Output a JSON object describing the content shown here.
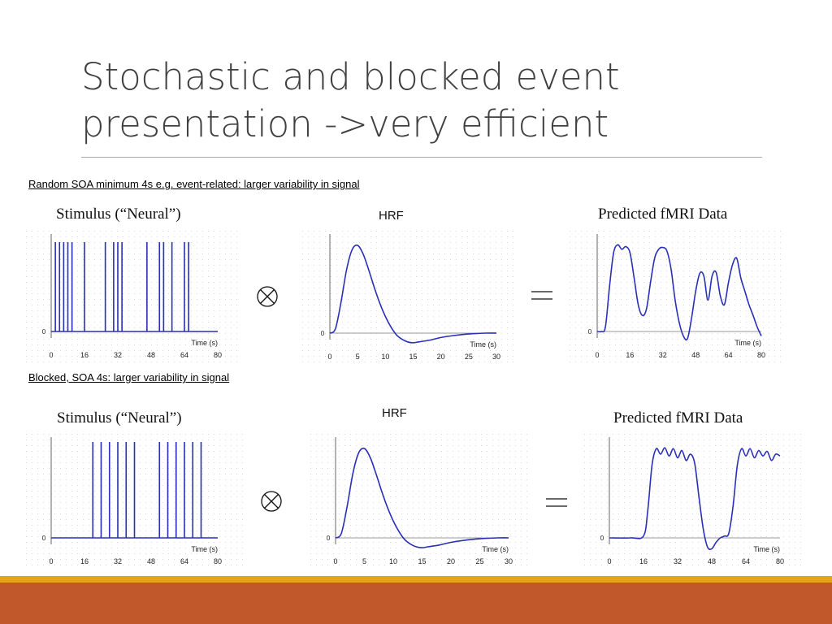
{
  "slide": {
    "title_line1": "Stochastic and blocked event",
    "title_line2": "presentation  ->very efficient"
  },
  "sections": {
    "random": {
      "label": "Random SOA minimum 4s e.g. event-related: larger variability in signal",
      "stimulus_title": "Stimulus (“Neural”)",
      "hrf_title": "HRF",
      "predicted_title": "Predicted fMRI Data"
    },
    "blocked": {
      "label": "Blocked, SOA 4s: larger variability in signal",
      "stimulus_title": "Stimulus (“Neural”)",
      "hrf_title": "HRF",
      "predicted_title": "Predicted fMRI Data"
    }
  },
  "operators": {
    "convolve": "⊗",
    "equals": "="
  },
  "axis": {
    "zero": "0",
    "time_label": "Time (s)",
    "ticks_80": [
      "0",
      "16",
      "32",
      "48",
      "64",
      "80"
    ],
    "ticks_30": [
      "0",
      "5",
      "10",
      "15",
      "20",
      "25",
      "30"
    ]
  },
  "chart_data": [
    {
      "type": "line",
      "panel": "random-stimulus",
      "xlim": [
        0,
        80
      ],
      "xlabel": "Time (s)",
      "events_x": [
        2,
        4,
        6,
        8,
        10,
        16,
        26,
        30,
        32,
        34,
        46,
        52,
        54,
        58,
        64,
        66
      ]
    },
    {
      "type": "line",
      "panel": "random-hrf",
      "xlim": [
        0,
        30
      ],
      "xlabel": "Time (s)",
      "x": [
        0,
        1,
        2,
        3,
        4,
        5,
        6,
        7,
        8,
        9,
        10,
        11,
        12,
        13,
        14,
        15,
        16,
        18,
        20,
        22,
        25,
        28,
        30
      ],
      "y": [
        0,
        0.05,
        0.35,
        0.72,
        0.95,
        1.0,
        0.9,
        0.72,
        0.52,
        0.34,
        0.19,
        0.07,
        -0.02,
        -0.07,
        -0.1,
        -0.11,
        -0.1,
        -0.08,
        -0.05,
        -0.03,
        -0.01,
        0,
        0
      ]
    },
    {
      "type": "line",
      "panel": "random-predicted",
      "xlim": [
        0,
        80
      ],
      "xlabel": "Time (s)",
      "x": [
        0,
        2,
        4,
        6,
        8,
        10,
        12,
        14,
        16,
        18,
        20,
        22,
        24,
        26,
        28,
        30,
        32,
        34,
        36,
        38,
        40,
        42,
        44,
        46,
        48,
        50,
        52,
        54,
        56,
        58,
        60,
        62,
        64,
        66,
        68,
        70,
        72,
        74,
        76,
        78,
        80
      ],
      "y": [
        0,
        0,
        0.05,
        0.5,
        0.88,
        0.97,
        0.92,
        0.95,
        0.88,
        0.6,
        0.3,
        0.18,
        0.25,
        0.55,
        0.82,
        0.92,
        0.94,
        0.9,
        0.7,
        0.35,
        0.1,
        -0.05,
        -0.08,
        0.15,
        0.45,
        0.65,
        0.62,
        0.35,
        0.62,
        0.66,
        0.4,
        0.3,
        0.55,
        0.75,
        0.82,
        0.6,
        0.45,
        0.3,
        0.18,
        0.05,
        -0.05
      ]
    },
    {
      "type": "line",
      "panel": "blocked-stimulus",
      "xlim": [
        0,
        80
      ],
      "xlabel": "Time (s)",
      "events_x": [
        20,
        24,
        28,
        32,
        36,
        40,
        52,
        56,
        60,
        64,
        68,
        72
      ]
    },
    {
      "type": "line",
      "panel": "blocked-hrf",
      "xlim": [
        0,
        30
      ],
      "xlabel": "Time (s)",
      "x": [
        0,
        1,
        2,
        3,
        4,
        5,
        6,
        7,
        8,
        9,
        10,
        11,
        12,
        13,
        14,
        15,
        16,
        18,
        20,
        22,
        25,
        28,
        30
      ],
      "y": [
        0,
        0.05,
        0.35,
        0.72,
        0.95,
        1.0,
        0.9,
        0.72,
        0.52,
        0.34,
        0.19,
        0.07,
        -0.02,
        -0.07,
        -0.1,
        -0.11,
        -0.1,
        -0.08,
        -0.05,
        -0.03,
        -0.01,
        0,
        0
      ]
    },
    {
      "type": "line",
      "panel": "blocked-predicted",
      "xlim": [
        0,
        80
      ],
      "xlabel": "Time (s)",
      "x": [
        0,
        10,
        16,
        18,
        20,
        22,
        24,
        26,
        28,
        30,
        32,
        34,
        36,
        38,
        40,
        42,
        44,
        46,
        48,
        50,
        52,
        54,
        56,
        58,
        60,
        62,
        64,
        66,
        68,
        70,
        72,
        74,
        76,
        78,
        80
      ],
      "y": [
        0,
        0,
        0.02,
        0.3,
        0.8,
        0.98,
        0.92,
        0.99,
        0.9,
        0.98,
        0.88,
        0.96,
        0.85,
        0.92,
        0.82,
        0.45,
        0.1,
        -0.1,
        -0.12,
        -0.05,
        0.0,
        0.02,
        0.05,
        0.35,
        0.8,
        0.98,
        0.9,
        0.98,
        0.88,
        0.96,
        0.9,
        0.95,
        0.85,
        0.92,
        0.9
      ]
    }
  ]
}
